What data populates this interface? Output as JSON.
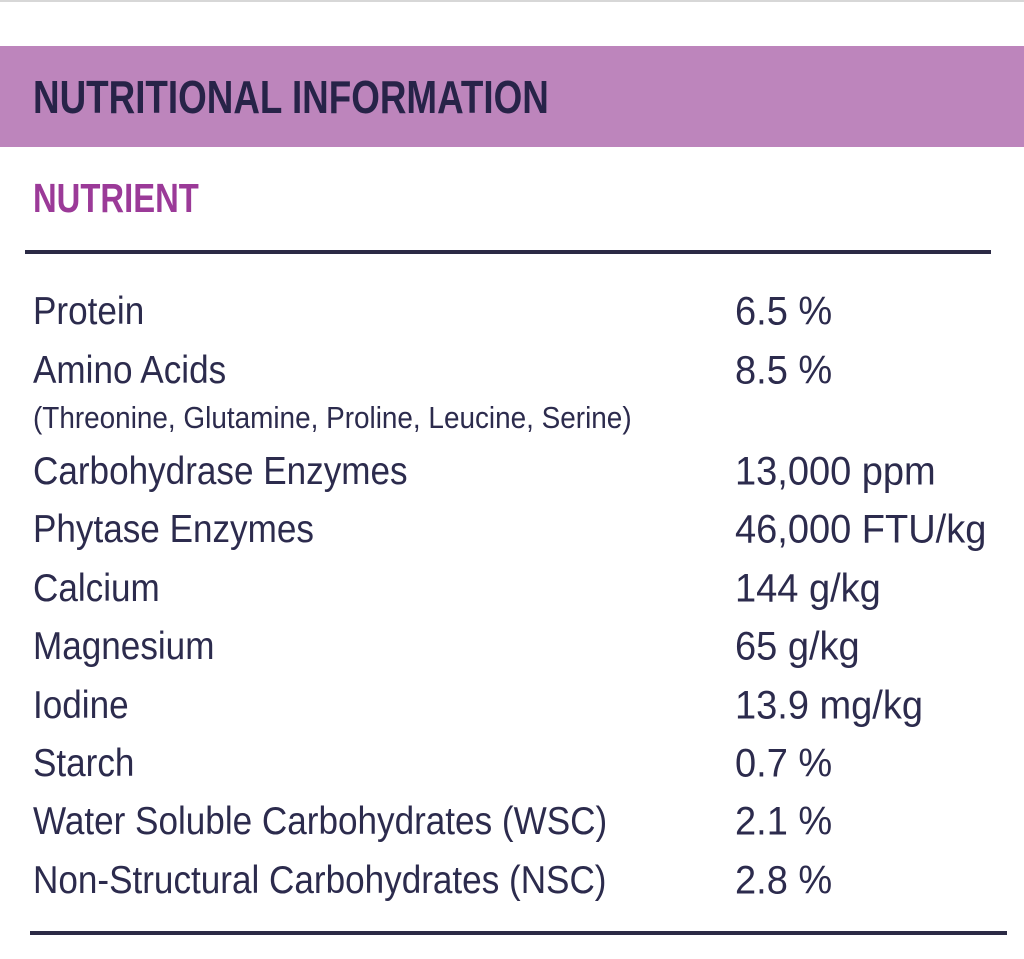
{
  "colors": {
    "band": "#bd85bc",
    "title": "#272348",
    "heading": "#9b3a98",
    "text": "#2c2b4d",
    "rule": "#2b2a45",
    "top_line": "#d7d7d7"
  },
  "header": {
    "title": "NUTRITIONAL INFORMATION"
  },
  "section": {
    "heading": "NUTRIENT"
  },
  "table": {
    "rows": [
      {
        "label": "Protein",
        "value": "6.5 %"
      },
      {
        "label": "Amino Acids",
        "value": "8.5 %",
        "sublabel": "(Threonine, Glutamine, Proline, Leucine, Serine)"
      },
      {
        "label": "Carbohydrase Enzymes",
        "value": "13,000 ppm"
      },
      {
        "label": "Phytase Enzymes",
        "value": "46,000 FTU/kg"
      },
      {
        "label": "Calcium",
        "value": "144 g/kg"
      },
      {
        "label": "Magnesium",
        "value": "65 g/kg"
      },
      {
        "label": "Iodine",
        "value": "13.9 mg/kg"
      },
      {
        "label": "Starch",
        "value": "0.7 %"
      },
      {
        "label": "Water Soluble Carbohydrates (WSC)",
        "value": "2.1 %"
      },
      {
        "label": "Non-Structural Carbohydrates (NSC)",
        "value": "2.8 %"
      }
    ]
  }
}
